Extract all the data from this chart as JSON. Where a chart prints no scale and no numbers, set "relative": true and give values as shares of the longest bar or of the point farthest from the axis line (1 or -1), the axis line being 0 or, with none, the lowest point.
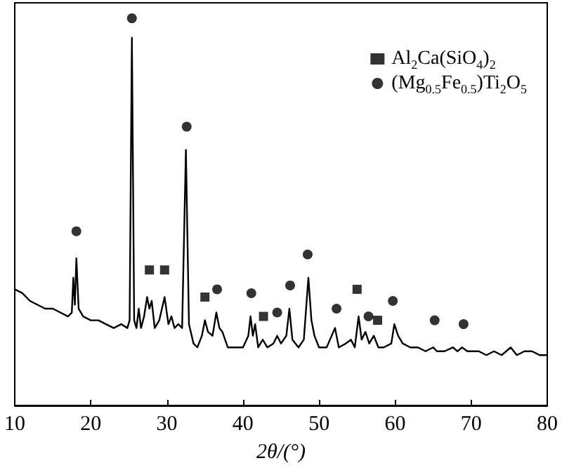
{
  "chart_data": {
    "type": "line",
    "relative": true,
    "xlabel": "2θ/(°)",
    "xlim": [
      10,
      80
    ],
    "xticks": [
      10,
      20,
      30,
      40,
      50,
      60,
      70,
      80
    ],
    "tick_labels": "x",
    "grid": false,
    "legend": "top right",
    "series": [
      {
        "color": "#000000",
        "marker": "none",
        "line_style": "solid",
        "x": [
          10,
          11,
          12,
          13,
          14,
          15,
          16,
          17,
          17.5,
          17.7,
          17.9,
          18.1,
          18.4,
          19,
          20,
          21,
          22,
          23,
          24,
          24.8,
          25.1,
          25.4,
          25.7,
          26,
          26.3,
          26.6,
          27,
          27.4,
          27.7,
          28,
          28.4,
          29,
          29.7,
          30.2,
          30.6,
          31,
          31.5,
          32,
          32.5,
          32.9,
          33.5,
          34,
          34.6,
          35,
          35.4,
          36,
          36.5,
          36.9,
          37.3,
          38,
          39,
          40,
          40.7,
          41,
          41.3,
          41.6,
          42,
          42.6,
          43.2,
          44,
          44.5,
          45,
          45.7,
          46.1,
          46.5,
          47.3,
          48,
          48.6,
          49,
          49.4,
          50,
          51,
          52.1,
          52.6,
          53.5,
          54.2,
          54.7,
          55.2,
          55.6,
          56.1,
          56.6,
          57.2,
          57.8,
          58.5,
          59.5,
          59.9,
          60.4,
          61,
          62,
          63,
          64,
          65,
          65.5,
          66.5,
          67.6,
          68.2,
          68.8,
          69.5,
          71,
          72,
          73,
          74,
          75.2,
          76,
          77,
          78,
          79,
          80
        ],
        "values": [
          0.3,
          0.29,
          0.27,
          0.26,
          0.25,
          0.25,
          0.24,
          0.23,
          0.24,
          0.33,
          0.26,
          0.38,
          0.25,
          0.23,
          0.22,
          0.22,
          0.21,
          0.2,
          0.21,
          0.2,
          0.22,
          0.95,
          0.22,
          0.2,
          0.25,
          0.2,
          0.23,
          0.28,
          0.25,
          0.27,
          0.2,
          0.22,
          0.28,
          0.21,
          0.23,
          0.2,
          0.21,
          0.2,
          0.66,
          0.21,
          0.16,
          0.15,
          0.18,
          0.22,
          0.19,
          0.18,
          0.24,
          0.2,
          0.19,
          0.15,
          0.15,
          0.15,
          0.18,
          0.23,
          0.18,
          0.21,
          0.15,
          0.17,
          0.15,
          0.16,
          0.18,
          0.16,
          0.18,
          0.25,
          0.17,
          0.15,
          0.17,
          0.33,
          0.22,
          0.18,
          0.15,
          0.15,
          0.2,
          0.15,
          0.16,
          0.17,
          0.15,
          0.23,
          0.17,
          0.19,
          0.16,
          0.18,
          0.15,
          0.15,
          0.16,
          0.21,
          0.18,
          0.16,
          0.15,
          0.15,
          0.14,
          0.15,
          0.14,
          0.14,
          0.15,
          0.14,
          0.15,
          0.14,
          0.14,
          0.13,
          0.14,
          0.13,
          0.15,
          0.13,
          0.14,
          0.14,
          0.13,
          0.13
        ]
      },
      {
        "type": "scatter",
        "name": "Al$_{2}$Ca(SiO$_{4}$)$_{2}$",
        "color": "#000000",
        "marker": "square",
        "x": [
          27.7,
          29.7,
          35.0,
          42.7,
          55.0,
          57.7
        ],
        "values": [
          0.35,
          0.35,
          0.28,
          0.23,
          0.3,
          0.22
        ]
      },
      {
        "type": "scatter",
        "name": "(Mg$_{0.5}$Fe$_{0.5}$)Ti$_{2}$O$_{5}$",
        "color": "#000000",
        "marker": "circle",
        "x": [
          18.1,
          25.4,
          32.6,
          36.6,
          41.1,
          44.5,
          46.2,
          48.5,
          52.3,
          56.5,
          59.7,
          65.2,
          69.0
        ],
        "values": [
          0.45,
          1.0,
          0.72,
          0.3,
          0.29,
          0.24,
          0.31,
          0.39,
          0.25,
          0.23,
          0.27,
          0.22,
          0.21
        ]
      }
    ]
  }
}
